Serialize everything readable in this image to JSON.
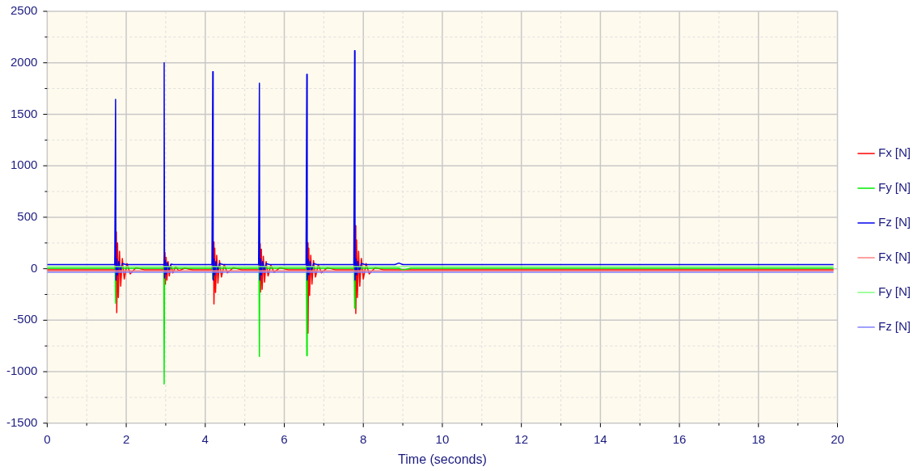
{
  "chart_data": {
    "type": "line",
    "xlabel": "Time (seconds)",
    "xlim": [
      0,
      20
    ],
    "ylim": [
      -1500,
      2500
    ],
    "xticks": [
      0,
      {
        "value": 1,
        "label": null
      },
      2,
      {
        "value": 3,
        "label": null
      },
      4,
      {
        "value": 5,
        "label": null
      },
      6,
      {
        "value": 7,
        "label": null
      },
      8,
      {
        "value": 9,
        "label": null
      },
      10,
      {
        "value": 11,
        "label": null
      },
      12,
      {
        "value": 13,
        "label": null
      },
      14,
      {
        "value": 15,
        "label": null
      },
      16,
      {
        "value": 17,
        "label": null
      },
      18,
      {
        "value": 19,
        "label": null
      },
      20
    ],
    "yticks": [
      -1500,
      {
        "value": -1250,
        "label": null
      },
      -1000,
      {
        "value": -750,
        "label": null
      },
      -500,
      {
        "value": -250,
        "label": null
      },
      0,
      {
        "value": 250,
        "label": null
      },
      500,
      {
        "value": 750,
        "label": null
      },
      1000,
      {
        "value": 1250,
        "label": null
      },
      1500,
      {
        "value": 1750,
        "label": null
      },
      2000,
      {
        "value": 2250,
        "label": null
      },
      2500
    ],
    "grid": true,
    "legend": "right",
    "marker": "none",
    "line_style": "solid",
    "series": [
      {
        "name": "Fx [N]",
        "color": "#ff0000",
        "x": [
          0,
          1.71,
          1.75,
          1.76,
          1.78,
          1.8,
          1.83,
          1.86,
          1.9,
          1.95,
          2.02,
          2.1,
          2.25,
          2.45,
          2.94,
          2.98,
          2.99,
          3.01,
          3.03,
          3.06,
          3.09,
          3.13,
          3.18,
          3.25,
          3.33,
          3.48,
          3.68,
          4.17,
          4.21,
          4.22,
          4.24,
          4.26,
          4.29,
          4.32,
          4.36,
          4.41,
          4.48,
          4.56,
          4.71,
          4.91,
          5.35,
          5.39,
          5.4,
          5.42,
          5.44,
          5.47,
          5.5,
          5.54,
          5.59,
          5.66,
          5.74,
          5.89,
          6.09,
          6.55,
          6.59,
          6.6,
          6.62,
          6.64,
          6.67,
          6.7,
          6.74,
          6.79,
          6.86,
          6.94,
          7.09,
          7.29,
          7.76,
          7.8,
          7.81,
          7.83,
          7.85,
          7.88,
          7.91,
          7.95,
          8.0,
          8.07,
          8.15,
          8.3,
          8.5,
          19.9
        ],
        "values": [
          -10,
          -10,
          358,
          -426,
          250,
          -280,
          170,
          -170,
          100,
          -100,
          50,
          -50,
          10,
          -10,
          -10,
          157,
          -150,
          110,
          -110,
          70,
          -70,
          40,
          -40,
          20,
          -20,
          5,
          -10,
          -10,
          259,
          -342,
          200,
          -230,
          130,
          -140,
          80,
          -80,
          40,
          -40,
          10,
          -10,
          -10,
          243,
          -227,
          190,
          -200,
          120,
          -130,
          70,
          -70,
          35,
          -35,
          10,
          -10,
          -10,
          253,
          -627,
          200,
          -260,
          130,
          -150,
          80,
          -80,
          40,
          -40,
          10,
          -10,
          -10,
          418,
          -434,
          280,
          -280,
          170,
          -170,
          100,
          -100,
          50,
          -50,
          10,
          -10,
          -10
        ]
      },
      {
        "name": "Fy [N]",
        "color": "#00ee00",
        "x": [
          0,
          1.72,
          1.73,
          1.74,
          1.78,
          2.95,
          2.96,
          2.97,
          3.01,
          4.18,
          4.19,
          4.2,
          4.24,
          5.36,
          5.37,
          5.38,
          5.42,
          6.56,
          6.57,
          6.58,
          6.62,
          7.77,
          7.78,
          7.79,
          7.83,
          8.9,
          9.0,
          9.2,
          19.9
        ],
        "values": [
          5,
          5,
          -335,
          30,
          5,
          5,
          -1119,
          30,
          5,
          5,
          -100,
          30,
          5,
          5,
          -852,
          30,
          5,
          5,
          -845,
          30,
          5,
          5,
          -384,
          30,
          5,
          5,
          -15,
          5,
          5
        ]
      },
      {
        "name": "Fz [N]",
        "color": "#0000ee",
        "x": [
          0,
          1.71,
          1.73,
          1.74,
          1.76,
          1.78,
          1.81,
          1.85,
          1.9,
          2.0,
          2.94,
          2.96,
          2.97,
          2.99,
          3.01,
          3.04,
          3.08,
          3.13,
          3.2,
          4.17,
          4.19,
          4.2,
          4.22,
          4.24,
          4.27,
          4.31,
          4.36,
          4.45,
          5.35,
          5.37,
          5.38,
          5.4,
          5.42,
          5.45,
          5.49,
          5.54,
          5.63,
          6.55,
          6.57,
          6.58,
          6.6,
          6.62,
          6.65,
          6.69,
          6.74,
          6.83,
          7.76,
          7.78,
          7.79,
          7.81,
          7.83,
          7.86,
          7.9,
          7.95,
          8.05,
          8.8,
          8.9,
          9.0,
          19.9
        ],
        "values": [
          40,
          40,
          1645,
          -110,
          95,
          -60,
          70,
          -20,
          50,
          40,
          40,
          2000,
          -90,
          80,
          -50,
          60,
          -10,
          45,
          40,
          40,
          1914,
          -110,
          95,
          -60,
          70,
          -20,
          50,
          40,
          40,
          1802,
          -110,
          95,
          -60,
          70,
          -20,
          50,
          40,
          40,
          1888,
          -110,
          95,
          -60,
          70,
          -20,
          50,
          40,
          40,
          2118,
          -110,
          95,
          -60,
          70,
          -20,
          50,
          40,
          40,
          55,
          40,
          40
        ]
      },
      {
        "name": "Fx [N]",
        "color": "#ff8080",
        "x": [
          0,
          19.9
        ],
        "values": [
          -20,
          -20
        ]
      },
      {
        "name": "Fy [N]",
        "color": "#80ff80",
        "x": [
          0,
          19.9
        ],
        "values": [
          20,
          20
        ]
      },
      {
        "name": "Fz [N]",
        "color": "#8080ff",
        "x": [
          0,
          19.9
        ],
        "values": [
          -35,
          -35
        ]
      }
    ]
  }
}
